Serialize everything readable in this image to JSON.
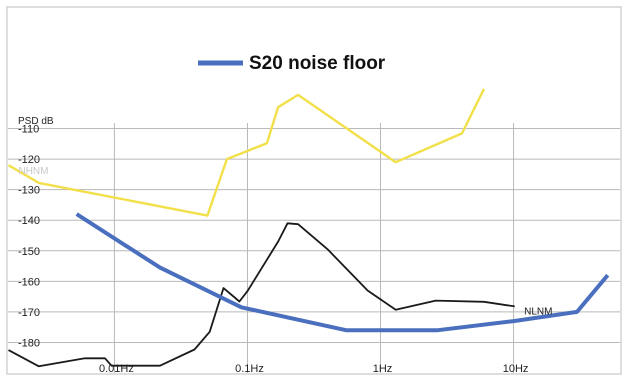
{
  "chart_data": {
    "type": "line",
    "title": "S20 noise floor",
    "ylabel": "PSD dB",
    "xscale": "log",
    "xlim": [
      0.001585,
      63.1
    ],
    "ylim": [
      -190,
      -100
    ],
    "yticks": [
      -110,
      -120,
      -130,
      -140,
      -150,
      -160,
      -170,
      -180
    ],
    "xticks": [
      {
        "value": 0.01,
        "label": "0.01Hz"
      },
      {
        "value": 0.1,
        "label": "0.1Hz"
      },
      {
        "value": 1,
        "label": "1Hz"
      },
      {
        "value": 10,
        "label": "10Hz"
      }
    ],
    "grid": true,
    "legend": "top-center",
    "series": [
      {
        "name": "S20 noise floor",
        "color": "#4a6fbe",
        "points": [
          [
            0.0052,
            -138
          ],
          [
            0.022,
            -155.5
          ],
          [
            0.09,
            -168.5
          ],
          [
            0.55,
            -176
          ],
          [
            2.7,
            -176
          ],
          [
            10,
            -173
          ],
          [
            30,
            -170
          ],
          [
            51,
            -158
          ]
        ]
      },
      {
        "name": "NHNM",
        "color": "#f2e04a",
        "points": [
          [
            0.0016,
            -122
          ],
          [
            0.0027,
            -127.8
          ],
          [
            0.05,
            -138.5
          ],
          [
            0.07,
            -120
          ],
          [
            0.14,
            -114.8
          ],
          [
            0.17,
            -103
          ],
          [
            0.24,
            -99
          ],
          [
            1.3,
            -121
          ],
          [
            4.1,
            -111.6
          ],
          [
            6.0,
            -97
          ]
        ]
      },
      {
        "name": "NLNM",
        "color": "#1a1a1a",
        "points": [
          [
            0.0016,
            -182.5
          ],
          [
            0.0027,
            -187.8
          ],
          [
            0.006,
            -185.2
          ],
          [
            0.0085,
            -185.2
          ],
          [
            0.0095,
            -187.6
          ],
          [
            0.022,
            -187.6
          ],
          [
            0.04,
            -182.3
          ],
          [
            0.052,
            -176.5
          ],
          [
            0.066,
            -162.2
          ],
          [
            0.087,
            -166.6
          ],
          [
            0.1,
            -163.2
          ],
          [
            0.17,
            -147
          ],
          [
            0.2,
            -141
          ],
          [
            0.24,
            -141.3
          ],
          [
            0.4,
            -149.5
          ],
          [
            0.8,
            -163
          ],
          [
            1.3,
            -169.3
          ],
          [
            2.6,
            -166.3
          ],
          [
            6.0,
            -166.7
          ],
          [
            10.2,
            -168.2
          ]
        ]
      }
    ],
    "annotations": [
      {
        "text": "NHNM",
        "x": 0.0019,
        "y": -123.5,
        "color": "#c8c8c8"
      },
      {
        "text": "NLNM",
        "x": 12,
        "y": -169.6,
        "color": "#1a1a1a"
      }
    ]
  }
}
